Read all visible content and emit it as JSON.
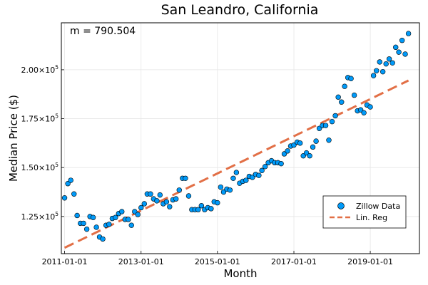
{
  "chart_data": {
    "type": "scatter",
    "title": "San Leandro, California",
    "xlabel": "Month",
    "ylabel": "Median Price ($)",
    "annotation": "m = 790.504",
    "x_ticks": [
      "2011-01-01",
      "2013-01-01",
      "2015-01-01",
      "2017-01-01",
      "2019-01-01"
    ],
    "y_ticks": [
      {
        "value": 125000,
        "mantissa": "1.25",
        "sup": "5"
      },
      {
        "value": 150000,
        "mantissa": "1.50",
        "sup": "5"
      },
      {
        "value": 175000,
        "mantissa": "1.75",
        "sup": "5"
      },
      {
        "value": 200000,
        "mantissa": "2.00",
        "sup": "5"
      }
    ],
    "xlim": [
      "2010-12-01",
      "2020-04-15"
    ],
    "ylim": [
      106000,
      224000
    ],
    "grid": true,
    "legend_position": "bottom-right",
    "series": [
      {
        "name": "Zillow Data",
        "kind": "scatter",
        "color": "#009af9",
        "points": [
          [
            "2011-01-01",
            134500
          ],
          [
            "2011-02-01",
            141800
          ],
          [
            "2011-03-01",
            143500
          ],
          [
            "2011-04-01",
            136500
          ],
          [
            "2011-05-01",
            125500
          ],
          [
            "2011-06-01",
            121500
          ],
          [
            "2011-07-01",
            121500
          ],
          [
            "2011-08-01",
            118500
          ],
          [
            "2011-09-01",
            125000
          ],
          [
            "2011-10-01",
            124500
          ],
          [
            "2011-11-01",
            119500
          ],
          [
            "2011-12-01",
            114500
          ],
          [
            "2012-01-01",
            113500
          ],
          [
            "2012-02-01",
            120500
          ],
          [
            "2012-03-01",
            121000
          ],
          [
            "2012-04-01",
            124000
          ],
          [
            "2012-05-01",
            124500
          ],
          [
            "2012-06-01",
            126500
          ],
          [
            "2012-07-01",
            127500
          ],
          [
            "2012-08-01",
            123500
          ],
          [
            "2012-09-01",
            123500
          ],
          [
            "2012-10-01",
            120500
          ],
          [
            "2012-11-01",
            127500
          ],
          [
            "2012-12-01",
            126000
          ],
          [
            "2013-01-01",
            129500
          ],
          [
            "2013-02-01",
            131500
          ],
          [
            "2013-03-01",
            136500
          ],
          [
            "2013-04-01",
            136500
          ],
          [
            "2013-05-01",
            134000
          ],
          [
            "2013-06-01",
            133000
          ],
          [
            "2013-07-01",
            136000
          ],
          [
            "2013-08-01",
            131500
          ],
          [
            "2013-09-01",
            132500
          ],
          [
            "2013-10-01",
            130000
          ],
          [
            "2013-11-01",
            133500
          ],
          [
            "2013-12-01",
            134000
          ],
          [
            "2014-01-01",
            138500
          ],
          [
            "2014-02-01",
            144500
          ],
          [
            "2014-03-01",
            144500
          ],
          [
            "2014-04-01",
            135500
          ],
          [
            "2014-05-01",
            128500
          ],
          [
            "2014-06-01",
            128500
          ],
          [
            "2014-07-01",
            128500
          ],
          [
            "2014-08-01",
            130500
          ],
          [
            "2014-09-01",
            128500
          ],
          [
            "2014-10-01",
            129500
          ],
          [
            "2014-11-01",
            129000
          ],
          [
            "2014-12-01",
            132500
          ],
          [
            "2015-01-01",
            132000
          ],
          [
            "2015-02-01",
            140000
          ],
          [
            "2015-03-01",
            137500
          ],
          [
            "2015-04-01",
            139000
          ],
          [
            "2015-05-01",
            138500
          ],
          [
            "2015-06-01",
            144500
          ],
          [
            "2015-07-01",
            147500
          ],
          [
            "2015-08-01",
            142000
          ],
          [
            "2015-09-01",
            143000
          ],
          [
            "2015-10-01",
            143500
          ],
          [
            "2015-11-01",
            145500
          ],
          [
            "2015-12-01",
            145000
          ],
          [
            "2016-01-01",
            146500
          ],
          [
            "2016-02-01",
            146000
          ],
          [
            "2016-03-01",
            148500
          ],
          [
            "2016-04-01",
            150500
          ],
          [
            "2016-05-01",
            152500
          ],
          [
            "2016-06-01",
            153500
          ],
          [
            "2016-07-01",
            152500
          ],
          [
            "2016-08-01",
            152500
          ],
          [
            "2016-09-01",
            152000
          ],
          [
            "2016-10-01",
            157000
          ],
          [
            "2016-11-01",
            158500
          ],
          [
            "2016-12-01",
            161000
          ],
          [
            "2017-01-01",
            161500
          ],
          [
            "2017-02-01",
            163000
          ],
          [
            "2017-03-01",
            162500
          ],
          [
            "2017-04-01",
            156000
          ],
          [
            "2017-05-01",
            157500
          ],
          [
            "2017-06-01",
            156000
          ],
          [
            "2017-07-01",
            160500
          ],
          [
            "2017-08-01",
            163500
          ],
          [
            "2017-09-01",
            170000
          ],
          [
            "2017-10-01",
            171500
          ],
          [
            "2017-11-01",
            171500
          ],
          [
            "2017-12-01",
            164000
          ],
          [
            "2018-01-01",
            173500
          ],
          [
            "2018-02-01",
            176500
          ],
          [
            "2018-03-01",
            186000
          ],
          [
            "2018-04-01",
            183500
          ],
          [
            "2018-05-01",
            191500
          ],
          [
            "2018-06-01",
            196000
          ],
          [
            "2018-07-01",
            195500
          ],
          [
            "2018-08-01",
            187000
          ],
          [
            "2018-09-01",
            179000
          ],
          [
            "2018-10-01",
            179500
          ],
          [
            "2018-11-01",
            178000
          ],
          [
            "2018-12-01",
            182000
          ],
          [
            "2019-01-01",
            181000
          ],
          [
            "2019-02-01",
            197000
          ],
          [
            "2019-03-01",
            199500
          ],
          [
            "2019-04-01",
            204000
          ],
          [
            "2019-05-01",
            199000
          ],
          [
            "2019-06-01",
            203000
          ],
          [
            "2019-07-01",
            205500
          ],
          [
            "2019-08-01",
            203500
          ],
          [
            "2019-09-01",
            211500
          ],
          [
            "2019-10-01",
            209000
          ],
          [
            "2019-11-01",
            215000
          ],
          [
            "2019-12-01",
            208000
          ],
          [
            "2020-01-01",
            218500
          ]
        ]
      },
      {
        "name": "Lin. Reg",
        "kind": "line",
        "style": "dashed",
        "color": "#e26f46",
        "points": [
          [
            "2011-01-01",
            109000
          ],
          [
            "2020-01-01",
            194500
          ]
        ]
      }
    ]
  }
}
